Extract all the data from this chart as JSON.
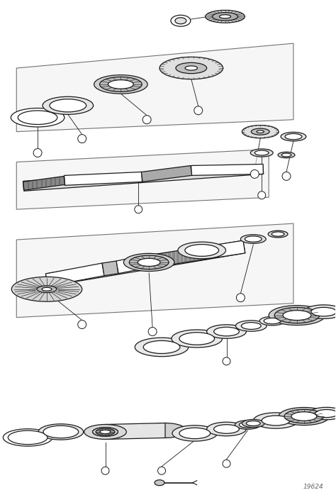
{
  "background_color": "#ffffff",
  "line_color": "#1a1a1a",
  "figure_width": 4.74,
  "figure_height": 6.98,
  "dpi": 100,
  "watermark": "19624"
}
